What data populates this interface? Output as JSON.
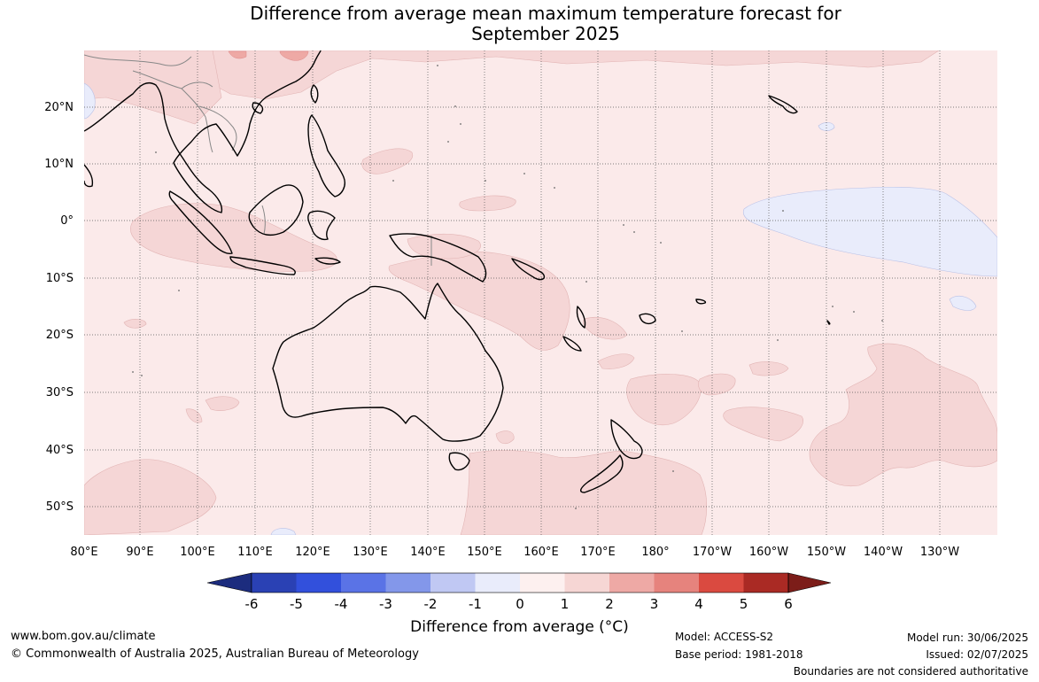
{
  "title": {
    "line1": "Difference from average mean maximum temperature forecast for",
    "line2": "September 2025"
  },
  "map": {
    "lon_labels": [
      "80°E",
      "90°E",
      "100°E",
      "110°E",
      "120°E",
      "130°E",
      "140°E",
      "150°E",
      "160°E",
      "170°E",
      "180°",
      "170°W",
      "160°W",
      "150°W",
      "140°W",
      "130°W"
    ],
    "lat_labels": [
      "20°N",
      "10°N",
      "0°",
      "10°S",
      "20°S",
      "30°S",
      "40°S",
      "50°S"
    ],
    "land_color": "#fbeaea",
    "warm_patch_color": "#f5d6d6",
    "cool_patch_color": "#e9ecfb",
    "coast_color": "#000000"
  },
  "colorbar": {
    "ticks": [
      "-6",
      "-5",
      "-4",
      "-3",
      "-2",
      "-1",
      "0",
      "1",
      "2",
      "3",
      "4",
      "5",
      "6"
    ],
    "colors": [
      "#1c2c7e",
      "#2a41b4",
      "#3250dc",
      "#5a73e6",
      "#8397ea",
      "#c0c8f3",
      "#e9ecfb",
      "#fdf0ef",
      "#f6d6d4",
      "#eea9a5",
      "#e6837d",
      "#da4a40",
      "#aa2a24",
      "#7c1d19"
    ],
    "label": "Difference from average ($^\\circ$C)",
    "label_display": "Difference from average (°C)"
  },
  "footer": {
    "website": "www.bom.gov.au/climate",
    "copyright": "© Commonwealth of Australia 2025, Australian Bureau of Meteorology",
    "model": "Model: ACCESS-S2",
    "base_period": "Base period: 1981-2018",
    "model_run": "Model run: 30/06/2025",
    "issued": "Issued: 02/07/2025",
    "disclaimer": "Boundaries are not considered authoritative"
  }
}
